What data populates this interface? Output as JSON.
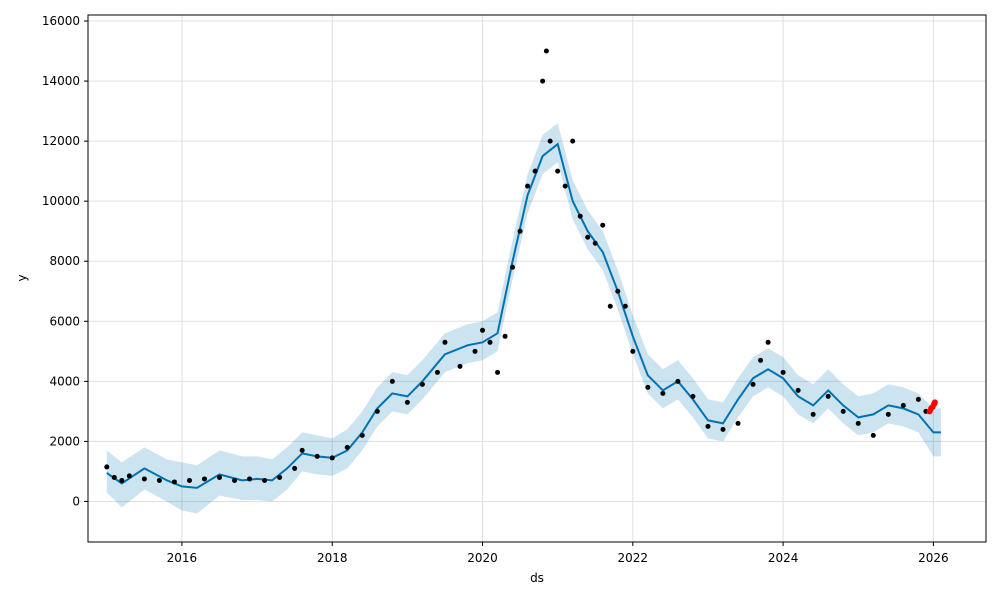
{
  "chart_data": {
    "type": "line",
    "title": "",
    "xlabel": "ds",
    "ylabel": "y",
    "xlim": [
      2014.75,
      2026.7
    ],
    "ylim": [
      -1350,
      16200
    ],
    "x_ticks": [
      2016,
      2018,
      2020,
      2022,
      2024,
      2026
    ],
    "x_tick_labels": [
      "2016",
      "2018",
      "2020",
      "2022",
      "2024",
      "2026"
    ],
    "y_ticks": [
      0,
      2000,
      4000,
      6000,
      8000,
      10000,
      12000,
      14000,
      16000
    ],
    "y_tick_labels": [
      "0",
      "2000",
      "4000",
      "6000",
      "8000",
      "10000",
      "12000",
      "14000",
      "16000"
    ],
    "grid": true,
    "legend": "none",
    "colors": {
      "forecast": "#0072B2",
      "interval": "#0072B2",
      "observed": "#000000",
      "recent": "#ff0000"
    },
    "series": [
      {
        "role": "forecast",
        "x": [
          2015.0,
          2015.2,
          2015.5,
          2015.8,
          2016.0,
          2016.2,
          2016.5,
          2016.8,
          2017.0,
          2017.2,
          2017.4,
          2017.6,
          2017.8,
          2018.0,
          2018.2,
          2018.4,
          2018.6,
          2018.8,
          2019.0,
          2019.2,
          2019.5,
          2019.8,
          2020.0,
          2020.2,
          2020.4,
          2020.6,
          2020.8,
          2021.0,
          2021.2,
          2021.4,
          2021.6,
          2021.8,
          2022.0,
          2022.2,
          2022.4,
          2022.6,
          2022.8,
          2023.0,
          2023.2,
          2023.4,
          2023.6,
          2023.8,
          2024.0,
          2024.2,
          2024.4,
          2024.6,
          2024.8,
          2025.0,
          2025.2,
          2025.4,
          2025.6,
          2025.8,
          2026.0,
          2026.1
        ],
        "y": [
          950,
          600,
          1100,
          700,
          500,
          450,
          900,
          700,
          750,
          700,
          1100,
          1600,
          1500,
          1450,
          1700,
          2300,
          3100,
          3600,
          3500,
          4000,
          4900,
          5200,
          5300,
          5600,
          8000,
          10200,
          11500,
          11900,
          10000,
          9000,
          8300,
          7000,
          5500,
          4200,
          3700,
          4000,
          3400,
          2700,
          2600,
          3400,
          4100,
          4400,
          4100,
          3500,
          3200,
          3700,
          3200,
          2800,
          2900,
          3200,
          3100,
          2900,
          2300,
          2300
        ]
      },
      {
        "role": "interval",
        "x": [
          2015.0,
          2015.2,
          2015.5,
          2015.8,
          2016.0,
          2016.2,
          2016.5,
          2016.8,
          2017.0,
          2017.2,
          2017.4,
          2017.6,
          2017.8,
          2018.0,
          2018.2,
          2018.4,
          2018.6,
          2018.8,
          2019.0,
          2019.2,
          2019.5,
          2019.8,
          2020.0,
          2020.2,
          2020.4,
          2020.6,
          2020.8,
          2021.0,
          2021.2,
          2021.4,
          2021.6,
          2021.8,
          2022.0,
          2022.2,
          2022.4,
          2022.6,
          2022.8,
          2023.0,
          2023.2,
          2023.4,
          2023.6,
          2023.8,
          2024.0,
          2024.2,
          2024.4,
          2024.6,
          2024.8,
          2025.0,
          2025.2,
          2025.4,
          2025.6,
          2025.8,
          2026.0,
          2026.1
        ],
        "lower": [
          300,
          -200,
          400,
          0,
          -300,
          -400,
          200,
          50,
          50,
          0,
          400,
          1000,
          900,
          850,
          1100,
          1700,
          2500,
          3000,
          2900,
          3400,
          4300,
          4600,
          4700,
          5000,
          7400,
          9600,
          10900,
          11300,
          9400,
          8400,
          7700,
          6400,
          4900,
          3600,
          3100,
          3400,
          2800,
          2100,
          2000,
          2800,
          3500,
          3800,
          3500,
          2900,
          2600,
          3100,
          2600,
          2200,
          2300,
          2600,
          2500,
          2300,
          1500,
          1500
        ],
        "upper": [
          1700,
          1300,
          1800,
          1400,
          1300,
          1200,
          1700,
          1500,
          1500,
          1400,
          1800,
          2300,
          2200,
          2100,
          2400,
          3000,
          3800,
          4300,
          4200,
          4700,
          5600,
          5900,
          6000,
          6300,
          8700,
          10900,
          12200,
          12600,
          10700,
          9700,
          9000,
          7700,
          6200,
          4900,
          4400,
          4700,
          4100,
          3400,
          3300,
          4100,
          4800,
          5100,
          4800,
          4200,
          3900,
          4400,
          3900,
          3500,
          3600,
          3900,
          3800,
          3600,
          3100,
          3100
        ]
      },
      {
        "role": "observed",
        "x": [
          2015.0,
          2015.1,
          2015.2,
          2015.3,
          2015.5,
          2015.7,
          2015.9,
          2016.1,
          2016.3,
          2016.5,
          2016.7,
          2016.9,
          2017.1,
          2017.3,
          2017.5,
          2017.6,
          2017.8,
          2018.0,
          2018.2,
          2018.4,
          2018.6,
          2018.8,
          2019.0,
          2019.2,
          2019.4,
          2019.5,
          2019.7,
          2019.9,
          2020.0,
          2020.1,
          2020.2,
          2020.3,
          2020.4,
          2020.5,
          2020.6,
          2020.7,
          2020.8,
          2020.85,
          2020.9,
          2021.0,
          2021.1,
          2021.2,
          2021.3,
          2021.4,
          2021.5,
          2021.6,
          2021.7,
          2021.8,
          2021.9,
          2022.0,
          2022.2,
          2022.4,
          2022.6,
          2022.8,
          2023.0,
          2023.2,
          2023.4,
          2023.6,
          2023.7,
          2023.8,
          2024.0,
          2024.2,
          2024.4,
          2024.6,
          2024.8,
          2025.0,
          2025.2,
          2025.4,
          2025.6,
          2025.8,
          2025.9
        ],
        "y": [
          1150,
          800,
          700,
          850,
          750,
          700,
          650,
          700,
          750,
          800,
          700,
          750,
          700,
          800,
          1100,
          1700,
          1500,
          1450,
          1800,
          2200,
          3000,
          4000,
          3300,
          3900,
          4300,
          5300,
          4500,
          5000,
          5700,
          5300,
          4300,
          5500,
          7800,
          9000,
          10500,
          11000,
          14000,
          15000,
          12000,
          11000,
          10500,
          12000,
          9500,
          8800,
          8600,
          9200,
          6500,
          7000,
          6500,
          5000,
          3800,
          3600,
          4000,
          3500,
          2500,
          2400,
          2600,
          3900,
          4700,
          5300,
          4300,
          3700,
          2900,
          3500,
          3000,
          2600,
          2200,
          2900,
          3200,
          3400,
          3000
        ]
      },
      {
        "role": "recent",
        "x": [
          2025.95,
          2025.97,
          2025.99,
          2026.01,
          2026.02
        ],
        "y": [
          3000,
          3100,
          3150,
          3250,
          3300
        ]
      }
    ]
  }
}
